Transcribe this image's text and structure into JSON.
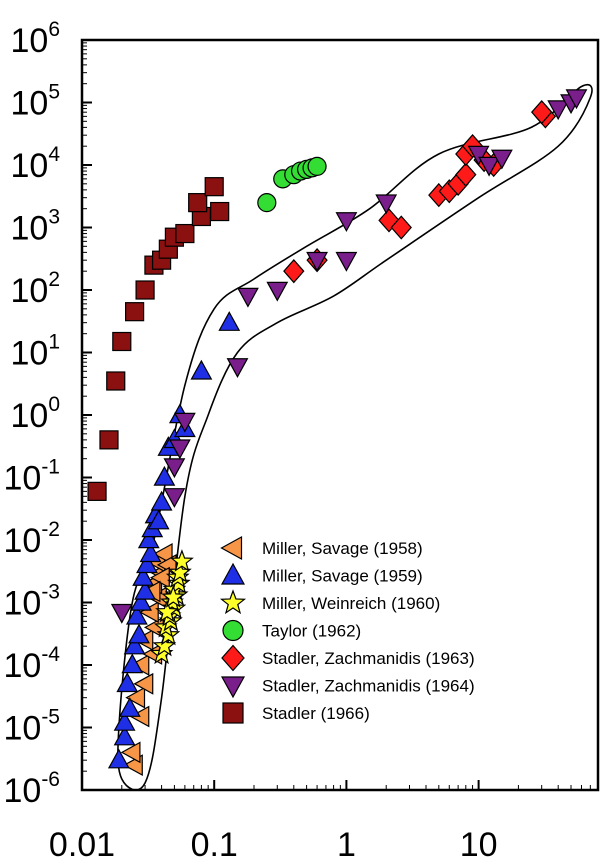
{
  "chart_data": {
    "type": "scatter",
    "title": "",
    "xlabel": "",
    "ylabel": "",
    "xscale": "log",
    "yscale": "log",
    "xlim": [
      0.01,
      80
    ],
    "ylim": [
      1e-06,
      1000000.0
    ],
    "legend_position": "bottom-right",
    "grid": false,
    "x_ticks": [
      {
        "value": 0.01,
        "label": "0.01"
      },
      {
        "value": 0.1,
        "label": "0.1"
      },
      {
        "value": 1,
        "label": "1"
      },
      {
        "value": 10,
        "label": "10"
      }
    ],
    "y_ticks": [
      {
        "value": 1e-06,
        "base": "10",
        "exp": "-6"
      },
      {
        "value": 1e-05,
        "base": "10",
        "exp": "-5"
      },
      {
        "value": 0.0001,
        "base": "10",
        "exp": "-4"
      },
      {
        "value": 0.001,
        "base": "10",
        "exp": "-3"
      },
      {
        "value": 0.01,
        "base": "10",
        "exp": "-2"
      },
      {
        "value": 0.1,
        "base": "10",
        "exp": "-1"
      },
      {
        "value": 1,
        "base": "10",
        "exp": "0"
      },
      {
        "value": 10,
        "base": "10",
        "exp": "1"
      },
      {
        "value": 100,
        "base": "10",
        "exp": "2"
      },
      {
        "value": 1000,
        "base": "10",
        "exp": "3"
      },
      {
        "value": 10000,
        "base": "10",
        "exp": "4"
      },
      {
        "value": 100000,
        "base": "10",
        "exp": "5"
      },
      {
        "value": 1000000,
        "base": "10",
        "exp": "6"
      }
    ],
    "envelope": [
      [
        0.03,
        1.3e-06
      ],
      [
        0.04,
        3e-05
      ],
      [
        0.06,
        0.05
      ],
      [
        0.09,
        1
      ],
      [
        0.15,
        10
      ],
      [
        0.3,
        30
      ],
      [
        0.8,
        80
      ],
      [
        2,
        300
      ],
      [
        10,
        3000
      ],
      [
        40,
        20000
      ],
      [
        70,
        120000
      ],
      [
        60,
        180000
      ],
      [
        25,
        40000
      ],
      [
        5,
        15000
      ],
      [
        1.5,
        2000
      ],
      [
        0.5,
        500
      ],
      [
        0.2,
        150
      ],
      [
        0.1,
        50
      ],
      [
        0.06,
        3
      ],
      [
        0.035,
        0.01
      ],
      [
        0.024,
        0.001
      ],
      [
        0.019,
        1e-05
      ],
      [
        0.02,
        1.5e-06
      ]
    ],
    "series": [
      {
        "name": "Miller, Savage (1958)",
        "marker": "triangle-left",
        "color": "#f79646",
        "points": [
          [
            0.025,
            2.5e-06
          ],
          [
            0.024,
            4e-06
          ],
          [
            0.028,
            1.5e-05
          ],
          [
            0.026,
            3e-05
          ],
          [
            0.03,
            5e-05
          ],
          [
            0.028,
            0.0001
          ],
          [
            0.035,
            0.00015
          ],
          [
            0.03,
            0.00025
          ],
          [
            0.036,
            0.0004
          ],
          [
            0.033,
            0.0007
          ],
          [
            0.038,
            0.0012
          ],
          [
            0.035,
            0.002
          ],
          [
            0.04,
            0.003
          ],
          [
            0.037,
            0.0045
          ],
          [
            0.042,
            0.006
          ],
          [
            0.045,
            0.004
          ],
          [
            0.04,
            0.0025
          ],
          [
            0.034,
            0.0015
          ]
        ]
      },
      {
        "name": "Miller, Savage (1959)",
        "marker": "triangle-up",
        "color": "#1f2fe6",
        "points": [
          [
            0.019,
            3e-06
          ],
          [
            0.021,
            7e-06
          ],
          [
            0.021,
            1.2e-05
          ],
          [
            0.023,
            2e-05
          ],
          [
            0.022,
            5e-05
          ],
          [
            0.024,
            0.0001
          ],
          [
            0.025,
            0.0002
          ],
          [
            0.027,
            0.0003
          ],
          [
            0.026,
            0.0006
          ],
          [
            0.028,
            0.001
          ],
          [
            0.03,
            0.0015
          ],
          [
            0.029,
            0.0025
          ],
          [
            0.031,
            0.004
          ],
          [
            0.033,
            0.006
          ],
          [
            0.032,
            0.01
          ],
          [
            0.034,
            0.015
          ],
          [
            0.036,
            0.025
          ],
          [
            0.04,
            0.04
          ],
          [
            0.038,
            0.02
          ],
          [
            0.042,
            0.1
          ],
          [
            0.045,
            0.3
          ],
          [
            0.05,
            0.4
          ],
          [
            0.055,
            1
          ],
          [
            0.06,
            0.6
          ],
          [
            0.08,
            5
          ],
          [
            0.13,
            30
          ]
        ]
      },
      {
        "name": "Miller, Weinreich (1960)",
        "marker": "star",
        "color": "#ffff2a",
        "points": [
          [
            0.04,
            0.00015
          ],
          [
            0.042,
            0.0002
          ],
          [
            0.045,
            0.0003
          ],
          [
            0.043,
            0.0004
          ],
          [
            0.047,
            0.0005
          ],
          [
            0.046,
            0.0006
          ],
          [
            0.05,
            0.0008
          ],
          [
            0.048,
            0.001
          ],
          [
            0.052,
            0.0013
          ],
          [
            0.05,
            0.0016
          ],
          [
            0.054,
            0.002
          ],
          [
            0.053,
            0.0025
          ],
          [
            0.055,
            0.003
          ],
          [
            0.057,
            0.0045
          ],
          [
            0.044,
            0.0007
          ],
          [
            0.049,
            0.0012
          ]
        ]
      },
      {
        "name": "Taylor (1962)",
        "marker": "circle",
        "color": "#33dd33",
        "points": [
          [
            0.25,
            2500
          ],
          [
            0.33,
            6000
          ],
          [
            0.4,
            7000
          ],
          [
            0.45,
            8000
          ],
          [
            0.5,
            8500
          ],
          [
            0.55,
            9000
          ],
          [
            0.6,
            9500
          ]
        ]
      },
      {
        "name": "Stadler, Zachmanidis (1963)",
        "marker": "diamond",
        "color": "#ff1a1a",
        "points": [
          [
            0.4,
            200
          ],
          [
            0.6,
            300
          ],
          [
            2.1,
            1300
          ],
          [
            2.6,
            1000
          ],
          [
            5,
            3300
          ],
          [
            6,
            3800
          ],
          [
            7,
            5000
          ],
          [
            8,
            7000
          ],
          [
            8,
            15000
          ],
          [
            9,
            20000
          ],
          [
            11,
            12000
          ],
          [
            13,
            10000
          ],
          [
            32,
            60000
          ],
          [
            30,
            70000
          ]
        ]
      },
      {
        "name": "Stadler, Zachmanidis (1964)",
        "marker": "triangle-down",
        "color": "#7a1e8c",
        "points": [
          [
            0.02,
            0.0007
          ],
          [
            0.05,
            0.05
          ],
          [
            0.05,
            0.15
          ],
          [
            0.055,
            0.3
          ],
          [
            0.06,
            0.8
          ],
          [
            0.15,
            6
          ],
          [
            0.18,
            80
          ],
          [
            0.3,
            100
          ],
          [
            0.6,
            300
          ],
          [
            1,
            300
          ],
          [
            1,
            1300
          ],
          [
            2,
            2500
          ],
          [
            10,
            15000
          ],
          [
            12,
            10000
          ],
          [
            15,
            13000
          ],
          [
            40,
            80000
          ],
          [
            50,
            100000
          ],
          [
            55,
            120000
          ]
        ]
      },
      {
        "name": "Stadler (1966)",
        "marker": "square",
        "color": "#8b1010",
        "points": [
          [
            0.013,
            0.06
          ],
          [
            0.016,
            0.4
          ],
          [
            0.018,
            3.5
          ],
          [
            0.02,
            15
          ],
          [
            0.025,
            45
          ],
          [
            0.03,
            100
          ],
          [
            0.035,
            250
          ],
          [
            0.04,
            300
          ],
          [
            0.045,
            450
          ],
          [
            0.05,
            700
          ],
          [
            0.06,
            800
          ],
          [
            0.08,
            1500
          ],
          [
            0.075,
            2500
          ],
          [
            0.1,
            4500
          ],
          [
            0.11,
            1800
          ]
        ]
      }
    ]
  }
}
